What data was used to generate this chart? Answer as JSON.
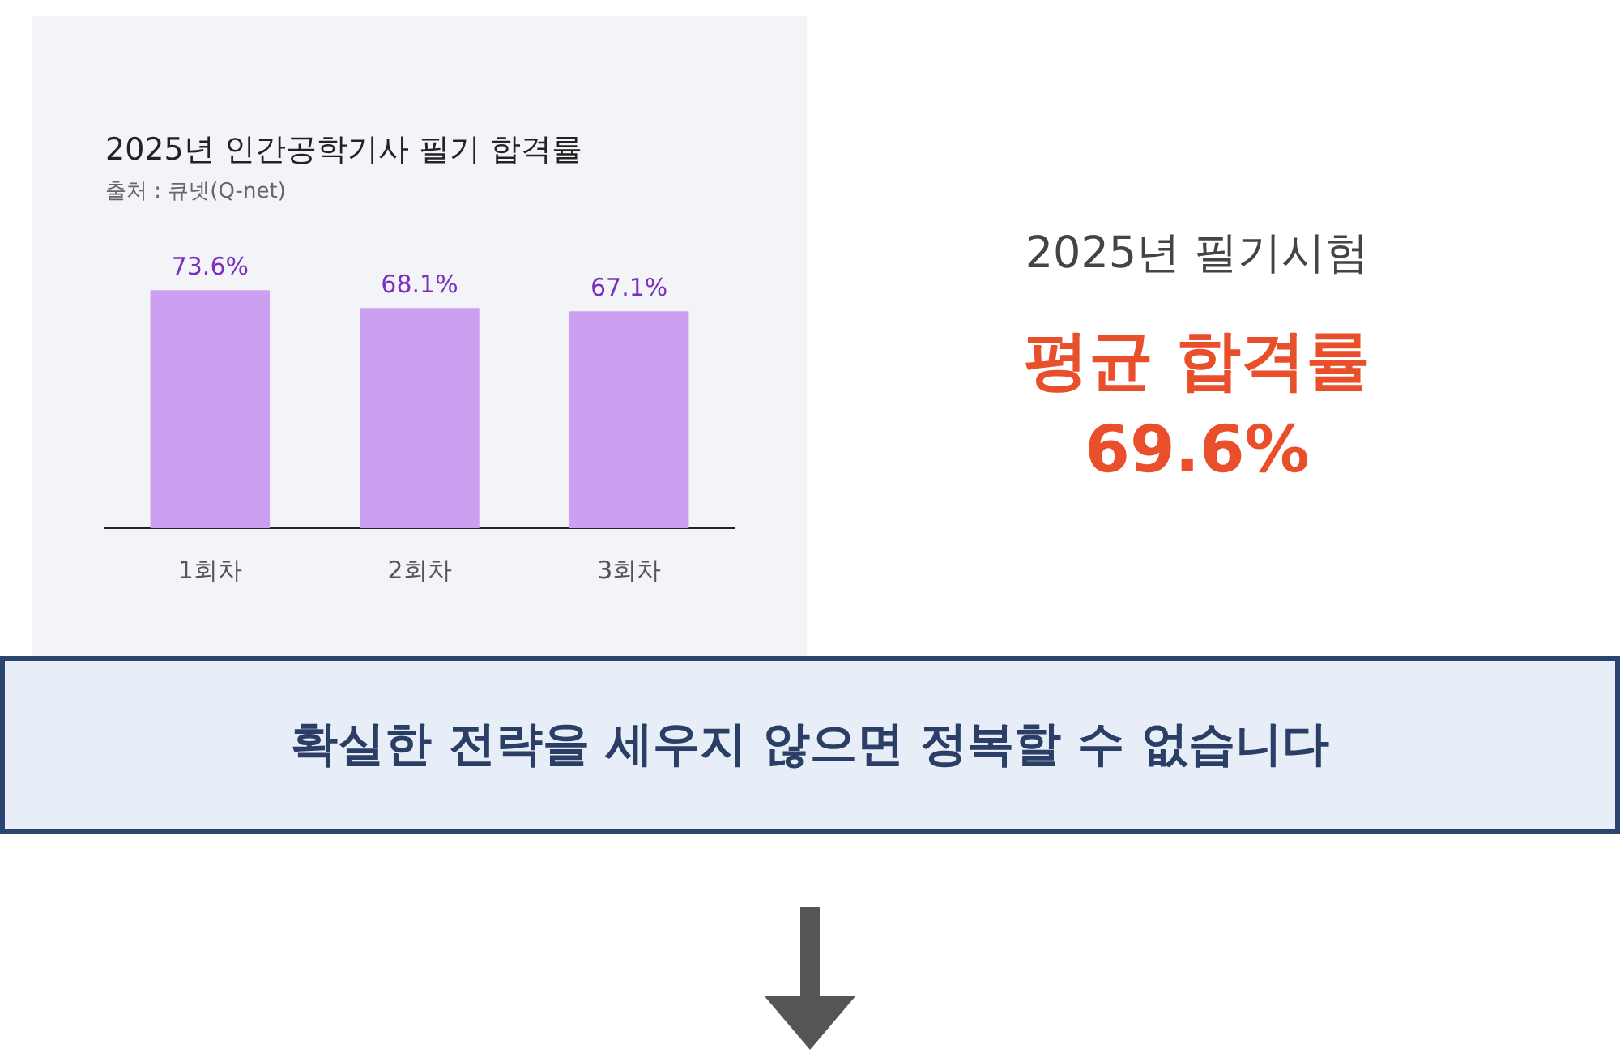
{
  "chart_data": [
    {
      "type": "bar",
      "title": "2025년 인간공학기사 필기 합격률",
      "subtitle": "출처 : 큐넷(Q-net)",
      "categories": [
        "1회차",
        "2회차",
        "3회차"
      ],
      "values": [
        73.6,
        68.1,
        67.1
      ],
      "value_labels": [
        "73.6%",
        "68.1%",
        "67.1%"
      ],
      "color": "#cc9ff0",
      "grid": false,
      "legend": false
    },
    {
      "type": "other",
      "title": "2025년 필기시험",
      "subtitle": "평균 합격률",
      "annotations": [
        "69.6%",
        "확실한 전략을 세우지 않으면 정복할 수 없습니다"
      ]
    }
  ]
}
